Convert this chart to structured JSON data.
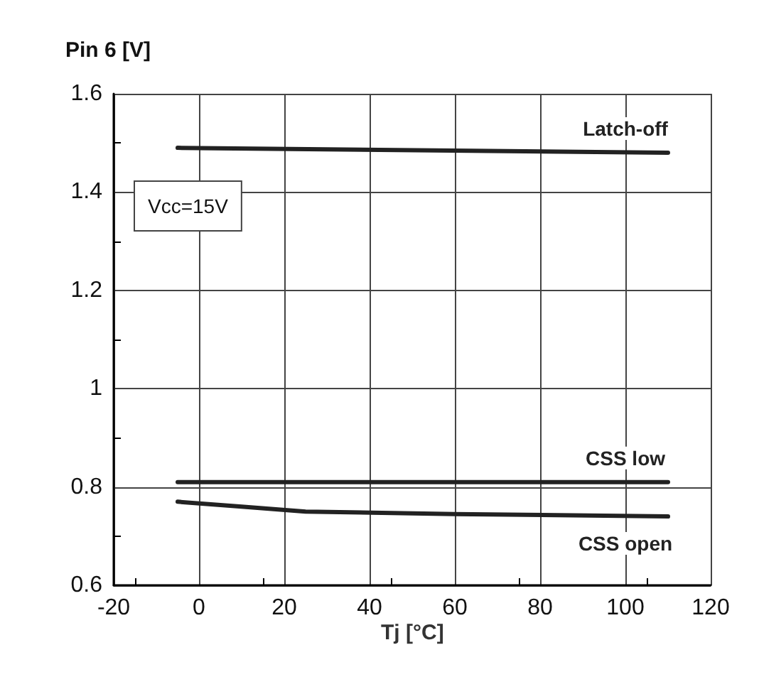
{
  "chart_data": {
    "type": "line",
    "xlabel": "Tj [°C]",
    "ylabel": "Pin 6 [V]",
    "annotations": [
      "Vcc=15V"
    ],
    "xlim": [
      -20,
      120
    ],
    "xticks": [
      -20,
      0,
      20,
      40,
      60,
      80,
      100,
      120
    ],
    "ylim": [
      0.6,
      1.6
    ],
    "yticks": [
      0.6,
      0.8,
      1,
      1.2,
      1.4,
      1.6
    ],
    "grid": true,
    "legend": false,
    "marker": "none",
    "line_style": "solid",
    "series": [
      {
        "name": "Latch-off",
        "color": "#222222",
        "x": [
          -5,
          110
        ],
        "values": [
          1.49,
          1.48
        ]
      },
      {
        "name": "CSS low",
        "color": "#222222",
        "x": [
          -5,
          110
        ],
        "values": [
          0.81,
          0.81
        ]
      },
      {
        "name": "CSS open",
        "color": "#222222",
        "x": [
          -5,
          10,
          25,
          60,
          110
        ],
        "values": [
          0.77,
          0.76,
          0.75,
          0.745,
          0.74
        ]
      }
    ]
  }
}
